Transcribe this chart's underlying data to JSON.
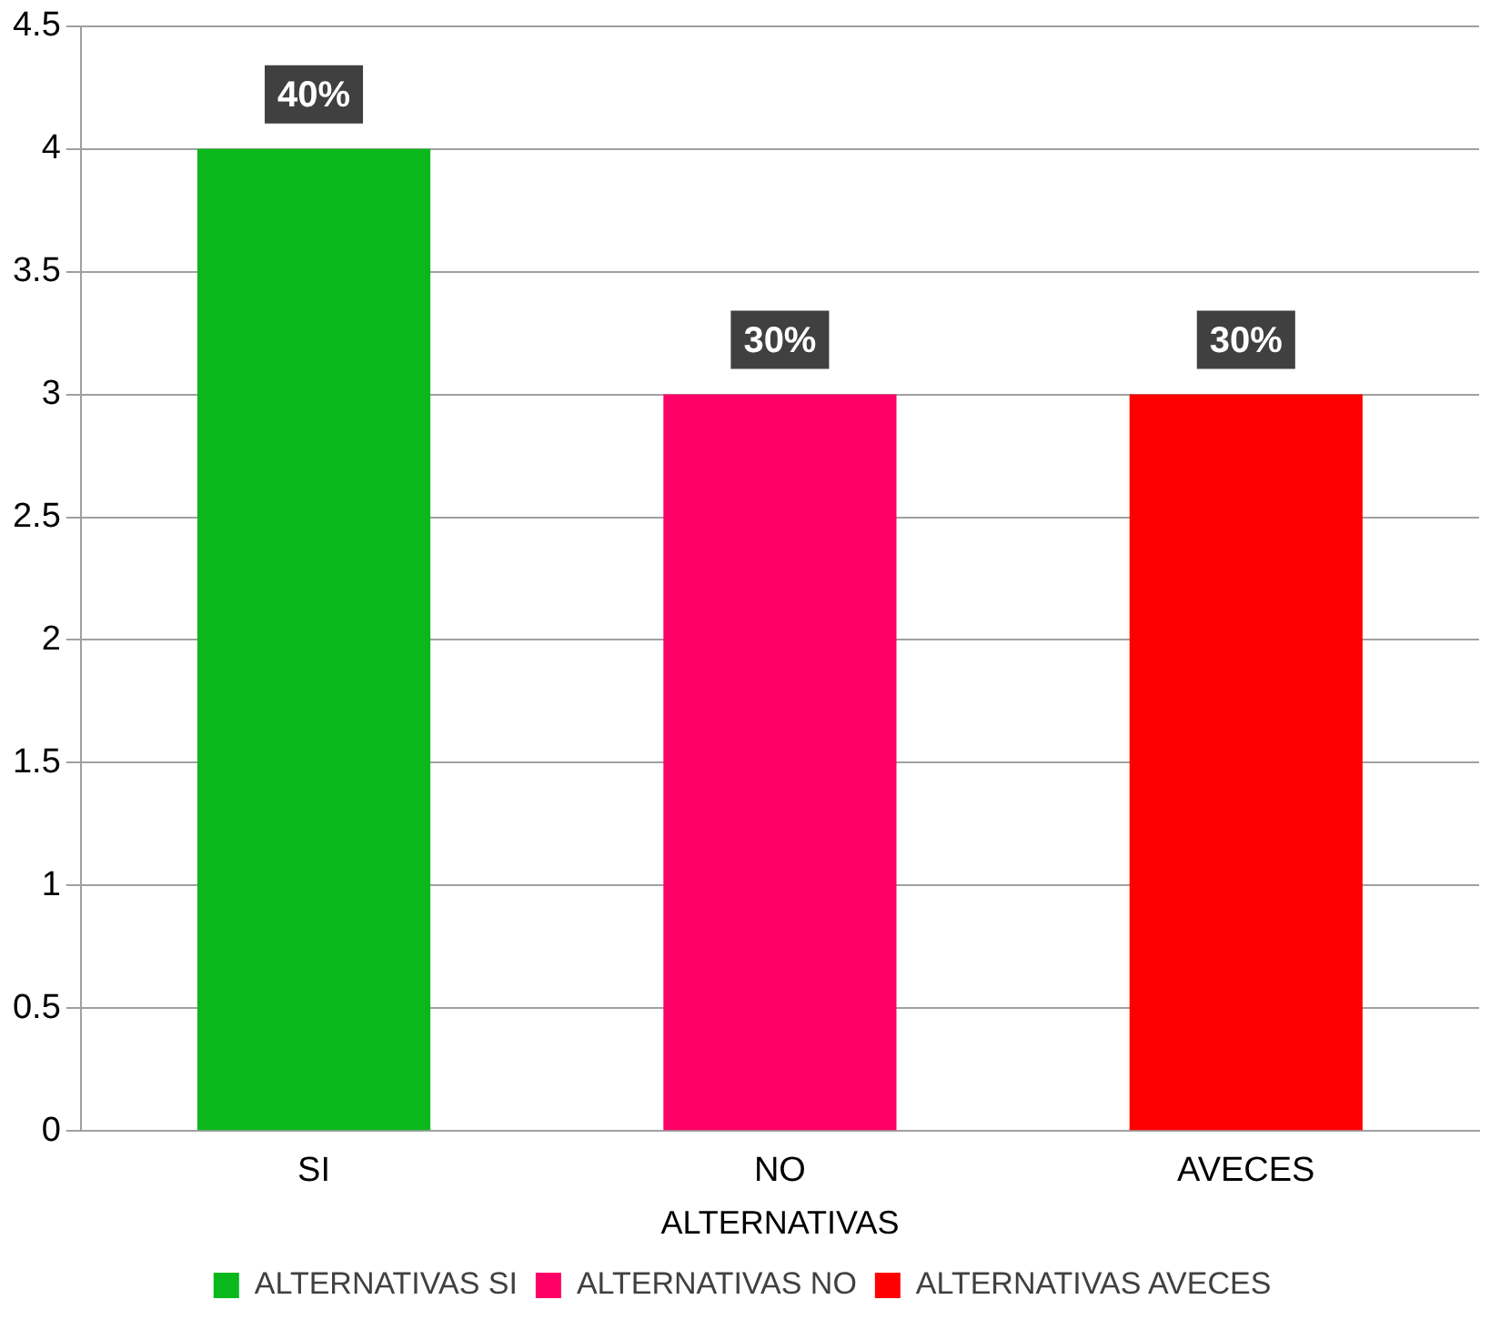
{
  "chart_data": {
    "type": "bar",
    "xlabel": "ALTERNATIVAS",
    "categories": [
      "SI",
      "NO",
      "AVECES"
    ],
    "series": [
      {
        "name": "ALTERNATIVAS SI",
        "color": "#0bb81b",
        "values": [
          4,
          null,
          null
        ]
      },
      {
        "name": "ALTERNATIVAS NO",
        "color": "#ff0066",
        "values": [
          null,
          3,
          null
        ]
      },
      {
        "name": "ALTERNATIVAS AVECES",
        "color": "#ff0000",
        "values": [
          null,
          null,
          3
        ]
      }
    ],
    "annotations": [
      {
        "text": "40%",
        "x": "SI",
        "y": 4
      },
      {
        "text": "30%",
        "x": "NO",
        "y": 3
      },
      {
        "text": "30%",
        "x": "AVECES",
        "y": 3
      }
    ],
    "ylim": [
      0,
      4.5
    ],
    "yticks": [
      0,
      0.5,
      1,
      1.5,
      2,
      2.5,
      3,
      3.5,
      4,
      4.5
    ],
    "grid": "y",
    "legend": "bottom"
  }
}
